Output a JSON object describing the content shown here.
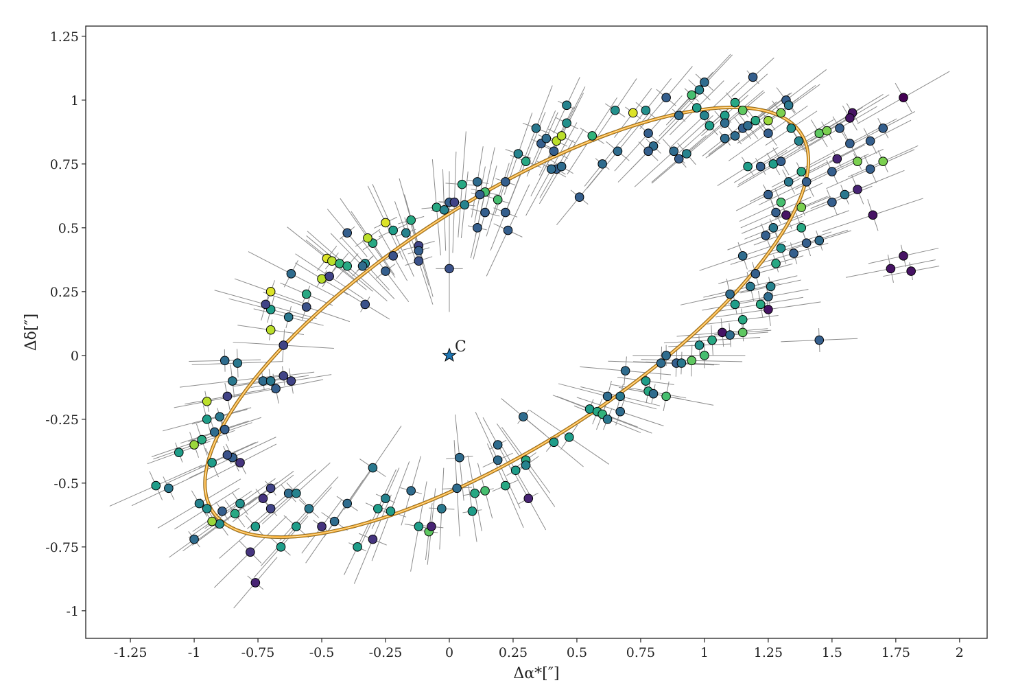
{
  "chart_data": {
    "type": "scatter",
    "xlabel": "Δα*[″]",
    "ylabel": "Δδ[″]",
    "xlim": [
      -1.425,
      2.108
    ],
    "ylim": [
      -1.108,
      1.29
    ],
    "xticks": [
      -1.25,
      -1,
      -0.75,
      -0.5,
      -0.25,
      0,
      0.25,
      0.5,
      0.75,
      1,
      1.25,
      1.5,
      1.75,
      2
    ],
    "xtick_labels": [
      "-1.25",
      "-1",
      "-0.75",
      "-0.5",
      "-0.25",
      "0",
      "0.25",
      "0.5",
      "0.75",
      "1",
      "1.25",
      "1.5",
      "1.75",
      "2"
    ],
    "yticks": [
      -1,
      -0.75,
      -0.5,
      -0.25,
      0,
      0.25,
      0.5,
      0.75,
      1,
      1.25
    ],
    "ytick_labels": [
      "-1",
      "-0.75",
      "-0.5",
      "-0.25",
      "0",
      "0.25",
      "0.5",
      "0.75",
      "1",
      "1.25"
    ],
    "grid": false,
    "colormap": "viridis",
    "marker_edge_color": "#000000",
    "errorbar_color": "#8c8c8c",
    "errorbar": {
      "radial": 0.16,
      "tangential": 0.05
    },
    "center_marker": {
      "label": "C",
      "x": 0,
      "y": 0,
      "color": "#1f77b4",
      "shape": "star"
    },
    "orbit": {
      "center": [
        0.225,
        0.13
      ],
      "semi_major": 1.37,
      "semi_minor": 0.48,
      "angle_deg": 32.6,
      "color": "#f5a623"
    },
    "points": [
      [
        1.19,
        1.09,
        0.3
      ],
      [
        1.0,
        1.07,
        0.35
      ],
      [
        0.98,
        1.04,
        0.45
      ],
      [
        0.95,
        1.02,
        0.7
      ],
      [
        0.85,
        1.01,
        0.3
      ],
      [
        1.32,
        1.0,
        0.3
      ],
      [
        1.33,
        0.98,
        0.4
      ],
      [
        1.12,
        0.99,
        0.6
      ],
      [
        1.78,
        1.01,
        0.0
      ],
      [
        1.58,
        0.95,
        0.05
      ],
      [
        1.57,
        0.93,
        0.05
      ],
      [
        1.15,
        0.96,
        0.75
      ],
      [
        1.25,
        0.92,
        0.85
      ],
      [
        1.3,
        0.95,
        0.8
      ],
      [
        1.34,
        0.89,
        0.5
      ],
      [
        1.37,
        0.84,
        0.45
      ],
      [
        1.45,
        0.87,
        0.75
      ],
      [
        1.48,
        0.88,
        0.8
      ],
      [
        1.53,
        0.89,
        0.3
      ],
      [
        1.57,
        0.83,
        0.3
      ],
      [
        1.7,
        0.89,
        0.3
      ],
      [
        1.65,
        0.84,
        0.3
      ],
      [
        1.6,
        0.76,
        0.8
      ],
      [
        1.7,
        0.76,
        0.8
      ],
      [
        1.65,
        0.73,
        0.3
      ],
      [
        1.52,
        0.77,
        0.1
      ],
      [
        1.5,
        0.72,
        0.3
      ],
      [
        1.6,
        0.65,
        0.1
      ],
      [
        1.55,
        0.63,
        0.4
      ],
      [
        1.5,
        0.6,
        0.3
      ],
      [
        1.66,
        0.55,
        0.05
      ],
      [
        1.78,
        0.39,
        0.05
      ],
      [
        1.73,
        0.34,
        0.05
      ],
      [
        1.81,
        0.33,
        0.05
      ],
      [
        1.45,
        0.06,
        0.3
      ],
      [
        1.25,
        0.87,
        0.3
      ],
      [
        1.22,
        0.74,
        0.3
      ],
      [
        1.27,
        0.75,
        0.55
      ],
      [
        1.3,
        0.76,
        0.3
      ],
      [
        1.38,
        0.72,
        0.6
      ],
      [
        1.33,
        0.68,
        0.4
      ],
      [
        1.4,
        0.68,
        0.3
      ],
      [
        1.25,
        0.63,
        0.3
      ],
      [
        1.3,
        0.6,
        0.7
      ],
      [
        1.38,
        0.58,
        0.8
      ],
      [
        1.28,
        0.56,
        0.3
      ],
      [
        1.32,
        0.55,
        0.05
      ],
      [
        1.27,
        0.5,
        0.4
      ],
      [
        1.24,
        0.47,
        0.3
      ],
      [
        1.38,
        0.5,
        0.6
      ],
      [
        1.45,
        0.45,
        0.35
      ],
      [
        1.4,
        0.44,
        0.3
      ],
      [
        1.3,
        0.42,
        0.5
      ],
      [
        1.35,
        0.4,
        0.3
      ],
      [
        1.15,
        0.39,
        0.35
      ],
      [
        1.28,
        0.36,
        0.6
      ],
      [
        1.2,
        0.32,
        0.3
      ],
      [
        1.18,
        0.27,
        0.4
      ],
      [
        1.26,
        0.27,
        0.45
      ],
      [
        1.25,
        0.23,
        0.35
      ],
      [
        1.1,
        0.24,
        0.35
      ],
      [
        1.12,
        0.2,
        0.55
      ],
      [
        1.22,
        0.2,
        0.6
      ],
      [
        1.25,
        0.18,
        0.05
      ],
      [
        1.15,
        0.14,
        0.6
      ],
      [
        1.07,
        0.09,
        0.05
      ],
      [
        1.15,
        0.09,
        0.75
      ],
      [
        1.1,
        0.08,
        0.35
      ],
      [
        1.03,
        0.06,
        0.6
      ],
      [
        0.98,
        0.04,
        0.5
      ],
      [
        1.0,
        0.0,
        0.7
      ],
      [
        0.95,
        -0.02,
        0.75
      ],
      [
        0.85,
        0.0,
        0.35
      ],
      [
        0.89,
        -0.03,
        0.3
      ],
      [
        0.83,
        -0.03,
        0.35
      ],
      [
        0.91,
        -0.03,
        0.4
      ],
      [
        0.69,
        -0.06,
        0.35
      ],
      [
        0.77,
        -0.1,
        0.55
      ],
      [
        0.78,
        -0.14,
        0.6
      ],
      [
        0.85,
        -0.16,
        0.7
      ],
      [
        0.8,
        -0.15,
        0.35
      ],
      [
        0.67,
        -0.16,
        0.4
      ],
      [
        0.62,
        -0.16,
        0.35
      ],
      [
        0.55,
        -0.21,
        0.55
      ],
      [
        0.58,
        -0.22,
        0.6
      ],
      [
        0.6,
        -0.23,
        0.65
      ],
      [
        0.62,
        -0.25,
        0.4
      ],
      [
        0.67,
        -0.22,
        0.35
      ],
      [
        0.29,
        -0.24,
        0.35
      ],
      [
        0.41,
        -0.34,
        0.55
      ],
      [
        0.47,
        -0.32,
        0.55
      ],
      [
        0.19,
        -0.35,
        0.35
      ],
      [
        0.3,
        -0.41,
        0.6
      ],
      [
        0.3,
        -0.43,
        0.45
      ],
      [
        0.26,
        -0.45,
        0.55
      ],
      [
        0.04,
        -0.4,
        0.35
      ],
      [
        0.19,
        -0.41,
        0.35
      ],
      [
        0.31,
        -0.56,
        0.1
      ],
      [
        0.22,
        -0.51,
        0.6
      ],
      [
        0.14,
        -0.53,
        0.7
      ],
      [
        0.1,
        -0.54,
        0.6
      ],
      [
        0.03,
        -0.52,
        0.35
      ],
      [
        0.09,
        -0.61,
        0.55
      ],
      [
        -0.03,
        -0.6,
        0.4
      ],
      [
        -0.3,
        -0.44,
        0.4
      ],
      [
        -0.25,
        -0.56,
        0.45
      ],
      [
        -0.28,
        -0.6,
        0.55
      ],
      [
        -0.23,
        -0.61,
        0.55
      ],
      [
        -0.15,
        -0.53,
        0.35
      ],
      [
        -0.12,
        -0.67,
        0.55
      ],
      [
        -0.08,
        -0.69,
        0.75
      ],
      [
        -0.07,
        -0.67,
        0.1
      ],
      [
        -0.3,
        -0.72,
        0.15
      ],
      [
        -0.36,
        -0.75,
        0.55
      ],
      [
        -0.4,
        -0.58,
        0.35
      ],
      [
        -0.45,
        -0.65,
        0.35
      ],
      [
        -0.5,
        -0.67,
        0.15
      ],
      [
        -0.55,
        -0.6,
        0.4
      ],
      [
        -0.6,
        -0.67,
        0.55
      ],
      [
        -0.63,
        -0.54,
        0.35
      ],
      [
        -0.6,
        -0.54,
        0.45
      ],
      [
        -0.7,
        -0.52,
        0.2
      ],
      [
        -0.73,
        -0.56,
        0.15
      ],
      [
        -0.76,
        -0.67,
        0.55
      ],
      [
        -0.7,
        -0.6,
        0.2
      ],
      [
        -0.66,
        -0.75,
        0.55
      ],
      [
        -0.78,
        -0.77,
        0.15
      ],
      [
        -0.76,
        -0.89,
        0.1
      ],
      [
        -0.82,
        -0.58,
        0.5
      ],
      [
        -0.84,
        -0.62,
        0.6
      ],
      [
        -0.89,
        -0.61,
        0.3
      ],
      [
        -0.9,
        -0.66,
        0.5
      ],
      [
        -0.93,
        -0.65,
        0.85
      ],
      [
        -0.95,
        -0.6,
        0.5
      ],
      [
        -0.98,
        -0.58,
        0.45
      ],
      [
        -1.0,
        -0.72,
        0.35
      ],
      [
        -1.1,
        -0.52,
        0.4
      ],
      [
        -1.15,
        -0.51,
        0.55
      ],
      [
        -1.06,
        -0.38,
        0.55
      ],
      [
        -1.0,
        -0.35,
        0.85
      ],
      [
        -0.97,
        -0.33,
        0.6
      ],
      [
        -0.92,
        -0.3,
        0.35
      ],
      [
        -0.95,
        -0.25,
        0.55
      ],
      [
        -0.9,
        -0.24,
        0.4
      ],
      [
        -0.88,
        -0.29,
        0.3
      ],
      [
        -0.85,
        -0.4,
        0.3
      ],
      [
        -0.87,
        -0.39,
        0.25
      ],
      [
        -0.82,
        -0.42,
        0.15
      ],
      [
        -0.93,
        -0.42,
        0.55
      ],
      [
        -0.95,
        -0.18,
        0.9
      ],
      [
        -0.87,
        -0.16,
        0.2
      ],
      [
        -0.85,
        -0.1,
        0.4
      ],
      [
        -0.88,
        -0.02,
        0.35
      ],
      [
        -0.83,
        -0.03,
        0.4
      ],
      [
        -0.73,
        -0.1,
        0.35
      ],
      [
        -0.7,
        -0.1,
        0.4
      ],
      [
        -0.68,
        -0.13,
        0.3
      ],
      [
        -0.65,
        -0.08,
        0.2
      ],
      [
        -0.62,
        -0.1,
        0.2
      ],
      [
        -0.65,
        0.04,
        0.2
      ],
      [
        -0.7,
        0.1,
        0.9
      ],
      [
        -0.7,
        0.18,
        0.55
      ],
      [
        -0.72,
        0.2,
        0.2
      ],
      [
        -0.63,
        0.15,
        0.4
      ],
      [
        -0.56,
        0.19,
        0.25
      ],
      [
        -0.56,
        0.24,
        0.6
      ],
      [
        -0.7,
        0.25,
        0.95
      ],
      [
        -0.62,
        0.32,
        0.35
      ],
      [
        -0.5,
        0.3,
        0.9
      ],
      [
        -0.47,
        0.31,
        0.2
      ],
      [
        -0.48,
        0.38,
        0.95
      ],
      [
        -0.46,
        0.37,
        0.9
      ],
      [
        -0.43,
        0.36,
        0.65
      ],
      [
        -0.4,
        0.35,
        0.6
      ],
      [
        -0.33,
        0.36,
        0.5
      ],
      [
        -0.34,
        0.35,
        0.35
      ],
      [
        -0.33,
        0.2,
        0.25
      ],
      [
        -0.3,
        0.44,
        0.6
      ],
      [
        -0.32,
        0.46,
        0.9
      ],
      [
        -0.4,
        0.48,
        0.3
      ],
      [
        -0.25,
        0.52,
        0.95
      ],
      [
        -0.22,
        0.49,
        0.55
      ],
      [
        -0.17,
        0.48,
        0.45
      ],
      [
        -0.15,
        0.53,
        0.6
      ],
      [
        -0.12,
        0.43,
        0.2
      ],
      [
        -0.12,
        0.41,
        0.3
      ],
      [
        -0.12,
        0.37,
        0.25
      ],
      [
        -0.22,
        0.39,
        0.25
      ],
      [
        -0.25,
        0.33,
        0.3
      ],
      [
        -0.05,
        0.58,
        0.6
      ],
      [
        0.0,
        0.6,
        0.3
      ],
      [
        -0.02,
        0.57,
        0.45
      ],
      [
        0.02,
        0.6,
        0.2
      ],
      [
        0.06,
        0.59,
        0.45
      ],
      [
        0.0,
        0.34,
        0.25
      ],
      [
        0.05,
        0.67,
        0.6
      ],
      [
        0.11,
        0.68,
        0.35
      ],
      [
        0.14,
        0.64,
        0.7
      ],
      [
        0.12,
        0.63,
        0.3
      ],
      [
        0.19,
        0.61,
        0.7
      ],
      [
        0.14,
        0.56,
        0.3
      ],
      [
        0.11,
        0.5,
        0.3
      ],
      [
        0.22,
        0.56,
        0.3
      ],
      [
        0.23,
        0.49,
        0.3
      ],
      [
        0.22,
        0.68,
        0.3
      ],
      [
        0.27,
        0.79,
        0.45
      ],
      [
        0.3,
        0.76,
        0.6
      ],
      [
        0.36,
        0.83,
        0.3
      ],
      [
        0.34,
        0.89,
        0.4
      ],
      [
        0.38,
        0.85,
        0.35
      ],
      [
        0.42,
        0.84,
        0.9
      ],
      [
        0.44,
        0.86,
        0.9
      ],
      [
        0.46,
        0.98,
        0.45
      ],
      [
        0.46,
        0.91,
        0.5
      ],
      [
        0.41,
        0.8,
        0.3
      ],
      [
        0.42,
        0.73,
        0.3
      ],
      [
        0.44,
        0.74,
        0.35
      ],
      [
        0.4,
        0.73,
        0.35
      ],
      [
        0.51,
        0.62,
        0.3
      ],
      [
        0.56,
        0.86,
        0.65
      ],
      [
        0.6,
        0.75,
        0.35
      ],
      [
        0.65,
        0.96,
        0.5
      ],
      [
        0.66,
        0.8,
        0.35
      ],
      [
        0.72,
        0.95,
        0.95
      ],
      [
        0.77,
        0.96,
        0.5
      ],
      [
        0.78,
        0.87,
        0.3
      ],
      [
        0.8,
        0.82,
        0.35
      ],
      [
        0.78,
        0.8,
        0.3
      ],
      [
        0.88,
        0.8,
        0.35
      ],
      [
        0.9,
        0.77,
        0.3
      ],
      [
        0.93,
        0.79,
        0.45
      ],
      [
        0.9,
        0.94,
        0.35
      ],
      [
        0.97,
        0.97,
        0.55
      ],
      [
        1.0,
        0.94,
        0.45
      ],
      [
        1.08,
        0.94,
        0.55
      ],
      [
        1.02,
        0.9,
        0.55
      ],
      [
        1.08,
        0.91,
        0.35
      ],
      [
        1.12,
        0.86,
        0.35
      ],
      [
        1.15,
        0.89,
        0.3
      ],
      [
        1.17,
        0.9,
        0.35
      ],
      [
        1.17,
        0.74,
        0.55
      ],
      [
        1.2,
        0.92,
        0.6
      ],
      [
        1.08,
        0.85,
        0.35
      ]
    ]
  }
}
